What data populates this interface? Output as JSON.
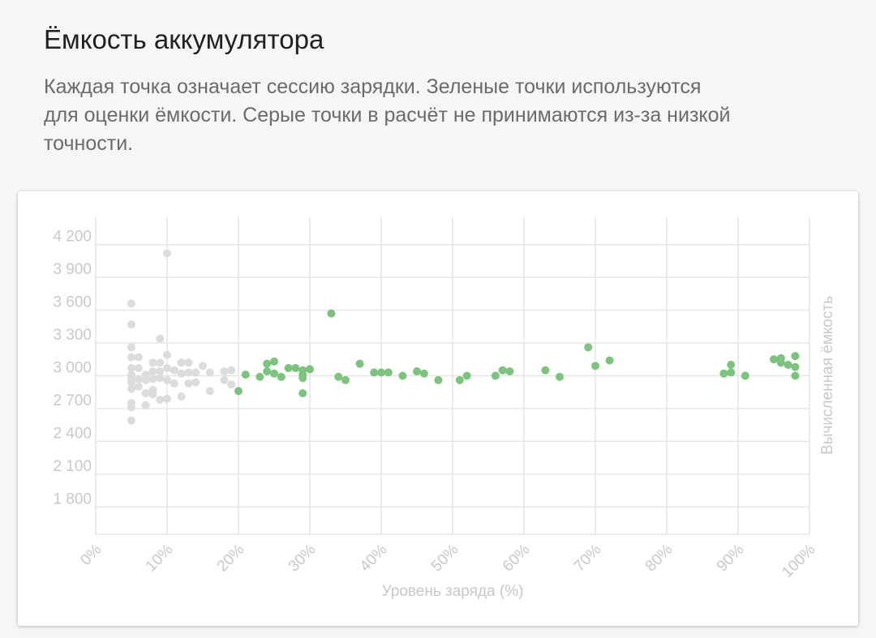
{
  "header": {
    "title": "Ёмкость аккумулятора",
    "description": "Каждая точка означает сессию зарядки. Зеленые точки используются для оценки ёмкости. Серые точки в расчёт не принимаются из-за низкой точности."
  },
  "chart_data": {
    "type": "scatter",
    "x_label": "Уровень заряда (%)",
    "y2_label": "Вычисленная ёмкость",
    "xlim": [
      0,
      100
    ],
    "xticks": [
      {
        "value": 0,
        "label": "0%"
      },
      {
        "value": 10,
        "label": "10%"
      },
      {
        "value": 20,
        "label": "20%"
      },
      {
        "value": 30,
        "label": "30%"
      },
      {
        "value": 40,
        "label": "40%"
      },
      {
        "value": 50,
        "label": "50%"
      },
      {
        "value": 60,
        "label": "60%"
      },
      {
        "value": 70,
        "label": "70%"
      },
      {
        "value": 80,
        "label": "80%"
      },
      {
        "value": 90,
        "label": "90%"
      },
      {
        "value": 100,
        "label": "100%"
      }
    ],
    "ylim": [
      1550,
      4450
    ],
    "yticks": [
      {
        "value": 1800,
        "label": "1 800"
      },
      {
        "value": 2100,
        "label": "2 100"
      },
      {
        "value": 2400,
        "label": "2 400"
      },
      {
        "value": 2700,
        "label": "2 700"
      },
      {
        "value": 3000,
        "label": "3 000"
      },
      {
        "value": 3300,
        "label": "3 300"
      },
      {
        "value": 3600,
        "label": "3 600"
      },
      {
        "value": 3900,
        "label": "3 900"
      },
      {
        "value": 4200,
        "label": "4 200"
      }
    ],
    "grid": true,
    "series": [
      {
        "color": "#dcdcdc",
        "x": [
          5,
          5,
          5,
          5,
          5,
          5,
          5,
          5,
          5,
          5,
          5,
          5,
          6,
          6,
          6,
          6,
          7,
          7,
          7,
          7,
          8,
          8,
          8,
          8,
          8,
          9,
          9,
          9,
          9,
          9,
          10,
          10,
          10,
          10,
          10,
          11,
          11,
          12,
          12,
          12,
          13,
          13,
          13,
          14,
          14,
          15,
          16,
          16,
          18,
          18,
          19,
          19
        ],
        "values": [
          3660,
          3470,
          3260,
          3170,
          3070,
          3010,
          2970,
          2940,
          2880,
          2750,
          2710,
          2590,
          3170,
          3070,
          2970,
          2900,
          3010,
          2960,
          2840,
          2730,
          3120,
          3040,
          2970,
          2870,
          2830,
          3340,
          3120,
          3040,
          2980,
          2780,
          4120,
          3190,
          3070,
          2960,
          2790,
          3050,
          2930,
          3120,
          3020,
          2810,
          3120,
          3030,
          2930,
          3030,
          2940,
          3090,
          3030,
          2860,
          3040,
          2960,
          3050,
          2920
        ]
      },
      {
        "color": "#7cc47e",
        "x": [
          21,
          20,
          23,
          24,
          24,
          25,
          25,
          26,
          27,
          28,
          29,
          29,
          29,
          29,
          30,
          33,
          34,
          35,
          37,
          39,
          40,
          41,
          43,
          45,
          46,
          48,
          51,
          52,
          56,
          57,
          58,
          63,
          65,
          69,
          70,
          72,
          88,
          89,
          89,
          91,
          95,
          96,
          96,
          97,
          98,
          98,
          98
        ],
        "values": [
          3010,
          2860,
          2990,
          3110,
          3040,
          3130,
          3020,
          2990,
          3070,
          3070,
          3050,
          3010,
          2980,
          2840,
          3060,
          3570,
          2990,
          2960,
          3110,
          3030,
          3030,
          3030,
          3000,
          3040,
          3020,
          2960,
          2960,
          3000,
          3000,
          3050,
          3040,
          3050,
          2990,
          3260,
          3090,
          3140,
          3020,
          3100,
          3030,
          3000,
          3150,
          3160,
          3120,
          3100,
          3180,
          3080,
          3000
        ]
      }
    ]
  }
}
